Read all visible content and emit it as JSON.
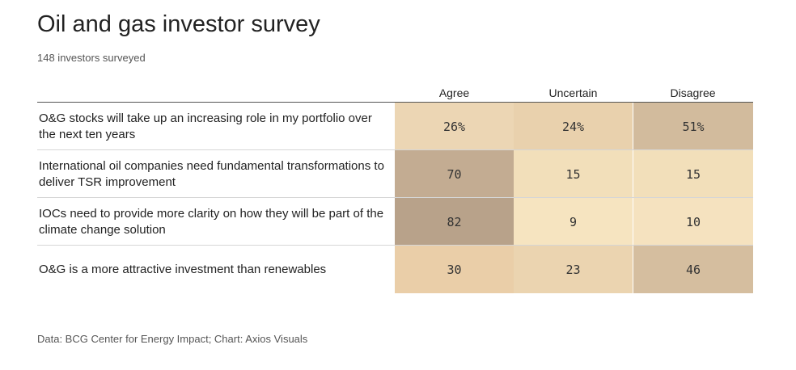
{
  "header": {
    "title": "Oil and gas investor survey",
    "subtitle": "148 investors surveyed"
  },
  "chart_data": {
    "type": "table",
    "title": "Oil and gas investor survey",
    "subtitle": "148 investors surveyed",
    "columns": [
      "Agree",
      "Uncertain",
      "Disagree"
    ],
    "rows": [
      {
        "label": "O&G stocks will take up an increasing role in my portfolio over the next ten years",
        "values": [
          26,
          24,
          51
        ],
        "display": [
          "26%",
          "24%",
          "51%"
        ],
        "colors": [
          "#ecd6b4",
          "#e9d1ad",
          "#d2bb9d"
        ]
      },
      {
        "label": "International oil companies need fundamental transformations to deliver TSR improvement",
        "values": [
          70,
          15,
          15
        ],
        "display": [
          "70",
          "15",
          "15"
        ],
        "colors": [
          "#c3ac92",
          "#f2dfba",
          "#f2dfba"
        ]
      },
      {
        "label": "IOCs need to provide more clarity on how they will be part of the climate change solution",
        "values": [
          82,
          9,
          10
        ],
        "display": [
          "82",
          "9",
          "10"
        ],
        "colors": [
          "#b8a28a",
          "#f6e4c0",
          "#f5e2bf"
        ]
      },
      {
        "label": "O&G is a more attractive investment than renewables",
        "values": [
          30,
          23,
          46
        ],
        "display": [
          "30",
          "23",
          "46"
        ],
        "colors": [
          "#eaceA8",
          "#ebd4b0",
          "#d5be9f"
        ]
      }
    ]
  },
  "footer": {
    "source": "Data: BCG Center for Energy Impact; Chart: Axios Visuals"
  }
}
